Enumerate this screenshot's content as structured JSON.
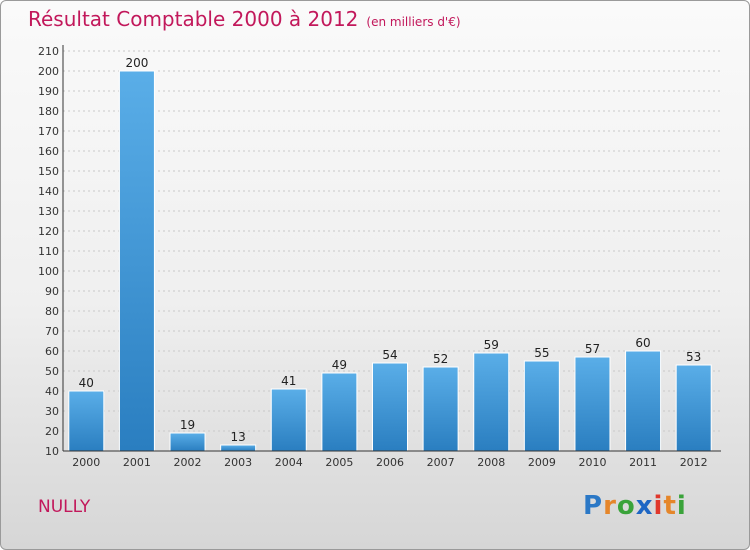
{
  "title": "Résultat Comptable 2000 à 2012",
  "unit": "(en milliers d'€)",
  "commune": "NULLY",
  "logo": {
    "text": "Proxiti",
    "letters": [
      "P",
      "r",
      "o",
      "x",
      "i",
      "t",
      "i"
    ],
    "colors": [
      "#2b78c6",
      "#e5862a",
      "#3aa33a",
      "#1e66c4",
      "#e0382c",
      "#e5862a",
      "#3aa33a"
    ]
  },
  "colors": {
    "bar_top": "#5aaee8",
    "bar_bottom": "#2a7ec0",
    "title": "#c2185b"
  },
  "chart_data": {
    "type": "bar",
    "title": "Résultat Comptable 2000 à 2012",
    "ylabel": "en milliers d'€",
    "xlabel": "",
    "categories": [
      "2000",
      "2001",
      "2002",
      "2003",
      "2004",
      "2005",
      "2006",
      "2007",
      "2008",
      "2009",
      "2010",
      "2011",
      "2012"
    ],
    "values": [
      40,
      200,
      19,
      13,
      41,
      49,
      54,
      52,
      59,
      55,
      57,
      60,
      53
    ],
    "ylim": [
      10,
      210
    ],
    "yticks": [
      10,
      20,
      30,
      40,
      50,
      60,
      70,
      80,
      90,
      100,
      110,
      120,
      130,
      140,
      150,
      160,
      170,
      180,
      190,
      200,
      210
    ],
    "grid": true
  }
}
